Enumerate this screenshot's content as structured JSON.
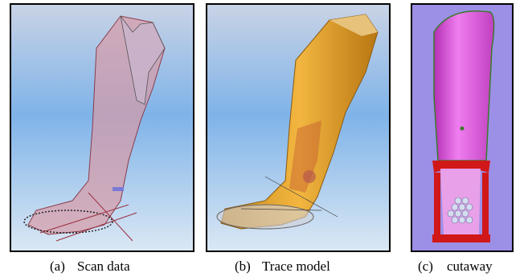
{
  "figure": {
    "panels": [
      {
        "label": "(a)",
        "caption": "Scan data"
      },
      {
        "label": "(b)",
        "caption": "Trace model"
      },
      {
        "label": "(c)",
        "caption": "cutaway"
      }
    ]
  }
}
